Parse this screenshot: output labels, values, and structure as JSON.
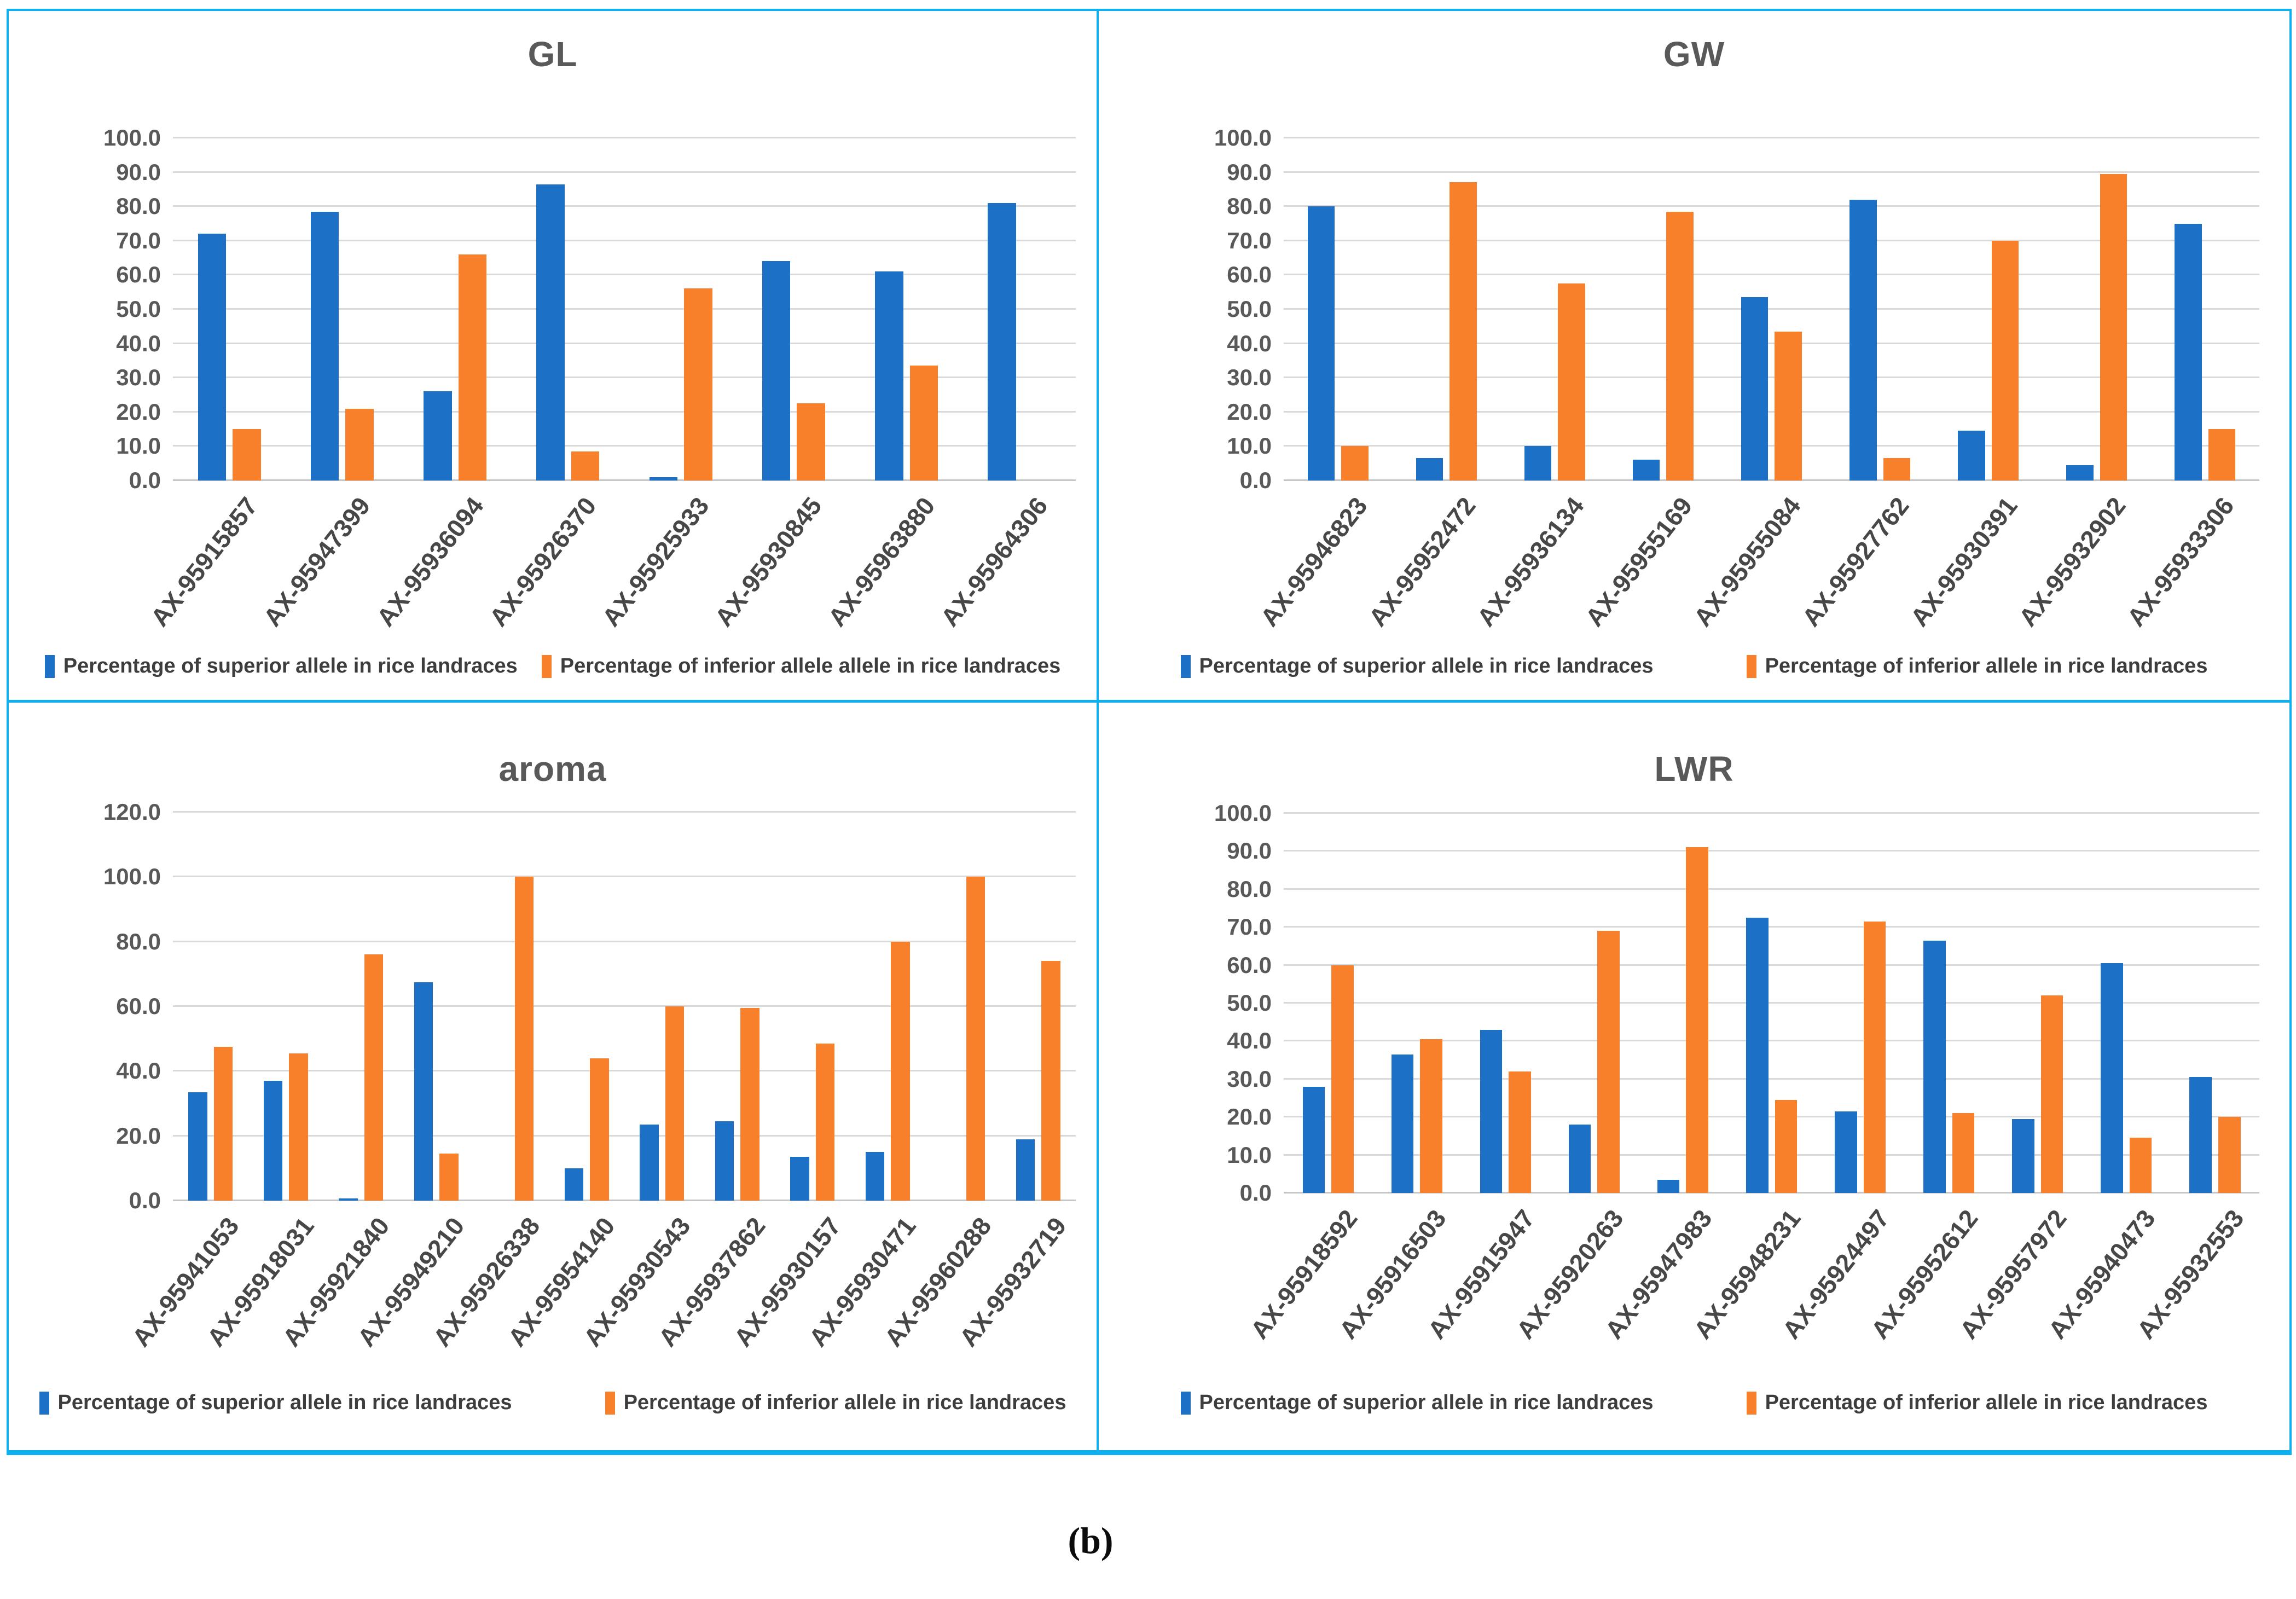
{
  "figure": {
    "caption": "(b)"
  },
  "colors": {
    "superior_blue": "#1c70c6",
    "inferior_orange": "#f8802b",
    "panel_border_cyan": "#0db1f0",
    "gridline_gray": "#d9d9d9",
    "text_gray": "#595959"
  },
  "chart_data": [
    {
      "type": "bar",
      "panel": "top-left",
      "title": "GL",
      "xlabel": "",
      "ylabel": "",
      "ylim": [
        0,
        100
      ],
      "y_step": 10,
      "grid": true,
      "legend_position": "bottom",
      "categories": [
        "AX-95915857",
        "AX-95947399",
        "AX-95936094",
        "AX-95926370",
        "AX-95925933",
        "AX-95930845",
        "AX-95963880",
        "AX-95964306"
      ],
      "series": [
        {
          "name": "Percentage of superior allele in rice landraces",
          "color": "#1c70c6",
          "values": [
            72.0,
            78.5,
            26.0,
            86.5,
            1.0,
            64.0,
            61.0,
            81.0
          ]
        },
        {
          "name": "Percentage of inferior allele allele in rice landraces",
          "color": "#f8802b",
          "values": [
            15.0,
            21.0,
            66.0,
            8.5,
            56.0,
            22.5,
            33.5,
            0.0
          ]
        }
      ]
    },
    {
      "type": "bar",
      "panel": "top-right",
      "title": "GW",
      "xlabel": "",
      "ylabel": "",
      "ylim": [
        0,
        100
      ],
      "y_step": 10,
      "grid": true,
      "legend_position": "bottom",
      "categories": [
        "AX-95946823",
        "AX-95952472",
        "AX-95936134",
        "AX-95955169",
        "AX-95955084",
        "AX-95927762",
        "AX-95930391",
        "AX-95932902",
        "AX-95933306"
      ],
      "series": [
        {
          "name": "Percentage of superior allele in rice landraces",
          "color": "#1c70c6",
          "values": [
            80.0,
            6.5,
            10.0,
            6.0,
            53.5,
            82.0,
            14.5,
            4.5,
            75.0
          ]
        },
        {
          "name": "Percentage of inferior allele in rice landraces",
          "color": "#f8802b",
          "values": [
            10.0,
            87.0,
            57.5,
            78.5,
            43.5,
            6.5,
            70.0,
            89.5,
            15.0
          ]
        }
      ]
    },
    {
      "type": "bar",
      "panel": "bottom-left",
      "title": "aroma",
      "xlabel": "",
      "ylabel": "",
      "ylim": [
        0,
        120
      ],
      "y_step": 20,
      "grid": true,
      "legend_position": "bottom",
      "categories": [
        "AX-95941053",
        "AX-95918031",
        "AX-95921840",
        "AX-95949210",
        "AX-95926338",
        "AX-95954140",
        "AX-95930543",
        "AX-95937862",
        "AX-95930157",
        "AX-95930471",
        "AX-95960288",
        "AX-95932719"
      ],
      "series": [
        {
          "name": "Percentage of superior allele in rice landraces",
          "color": "#1c70c6",
          "values": [
            33.5,
            37.0,
            0.7,
            67.5,
            0.0,
            10.0,
            23.5,
            24.5,
            13.5,
            15.0,
            0.0,
            19.0
          ]
        },
        {
          "name": "Percentage of inferior allele in rice landraces",
          "color": "#f8802b",
          "values": [
            47.5,
            45.5,
            76.0,
            14.5,
            100.0,
            44.0,
            60.0,
            59.5,
            48.5,
            80.0,
            100.0,
            74.0
          ]
        }
      ]
    },
    {
      "type": "bar",
      "panel": "bottom-right",
      "title": "LWR",
      "xlabel": "",
      "ylabel": "",
      "ylim": [
        0,
        100
      ],
      "y_step": 10,
      "grid": true,
      "legend_position": "bottom",
      "categories": [
        "AX-95918592",
        "AX-95916503",
        "AX-95915947",
        "AX-95920263",
        "AX-95947983",
        "AX-95948231",
        "AX-95924497",
        "AX-95952612",
        "AX-95957972",
        "AX-95940473",
        "AX-95932553"
      ],
      "series": [
        {
          "name": "Percentage of superior allele in rice landraces",
          "color": "#1c70c6",
          "values": [
            28.0,
            36.5,
            43.0,
            18.0,
            3.5,
            72.5,
            21.5,
            66.5,
            19.5,
            60.5,
            30.5
          ]
        },
        {
          "name": "Percentage of inferior allele in rice landraces",
          "color": "#f8802b",
          "values": [
            60.0,
            40.5,
            32.0,
            69.0,
            91.0,
            24.5,
            71.5,
            21.0,
            52.0,
            14.5,
            20.0
          ]
        }
      ]
    }
  ]
}
